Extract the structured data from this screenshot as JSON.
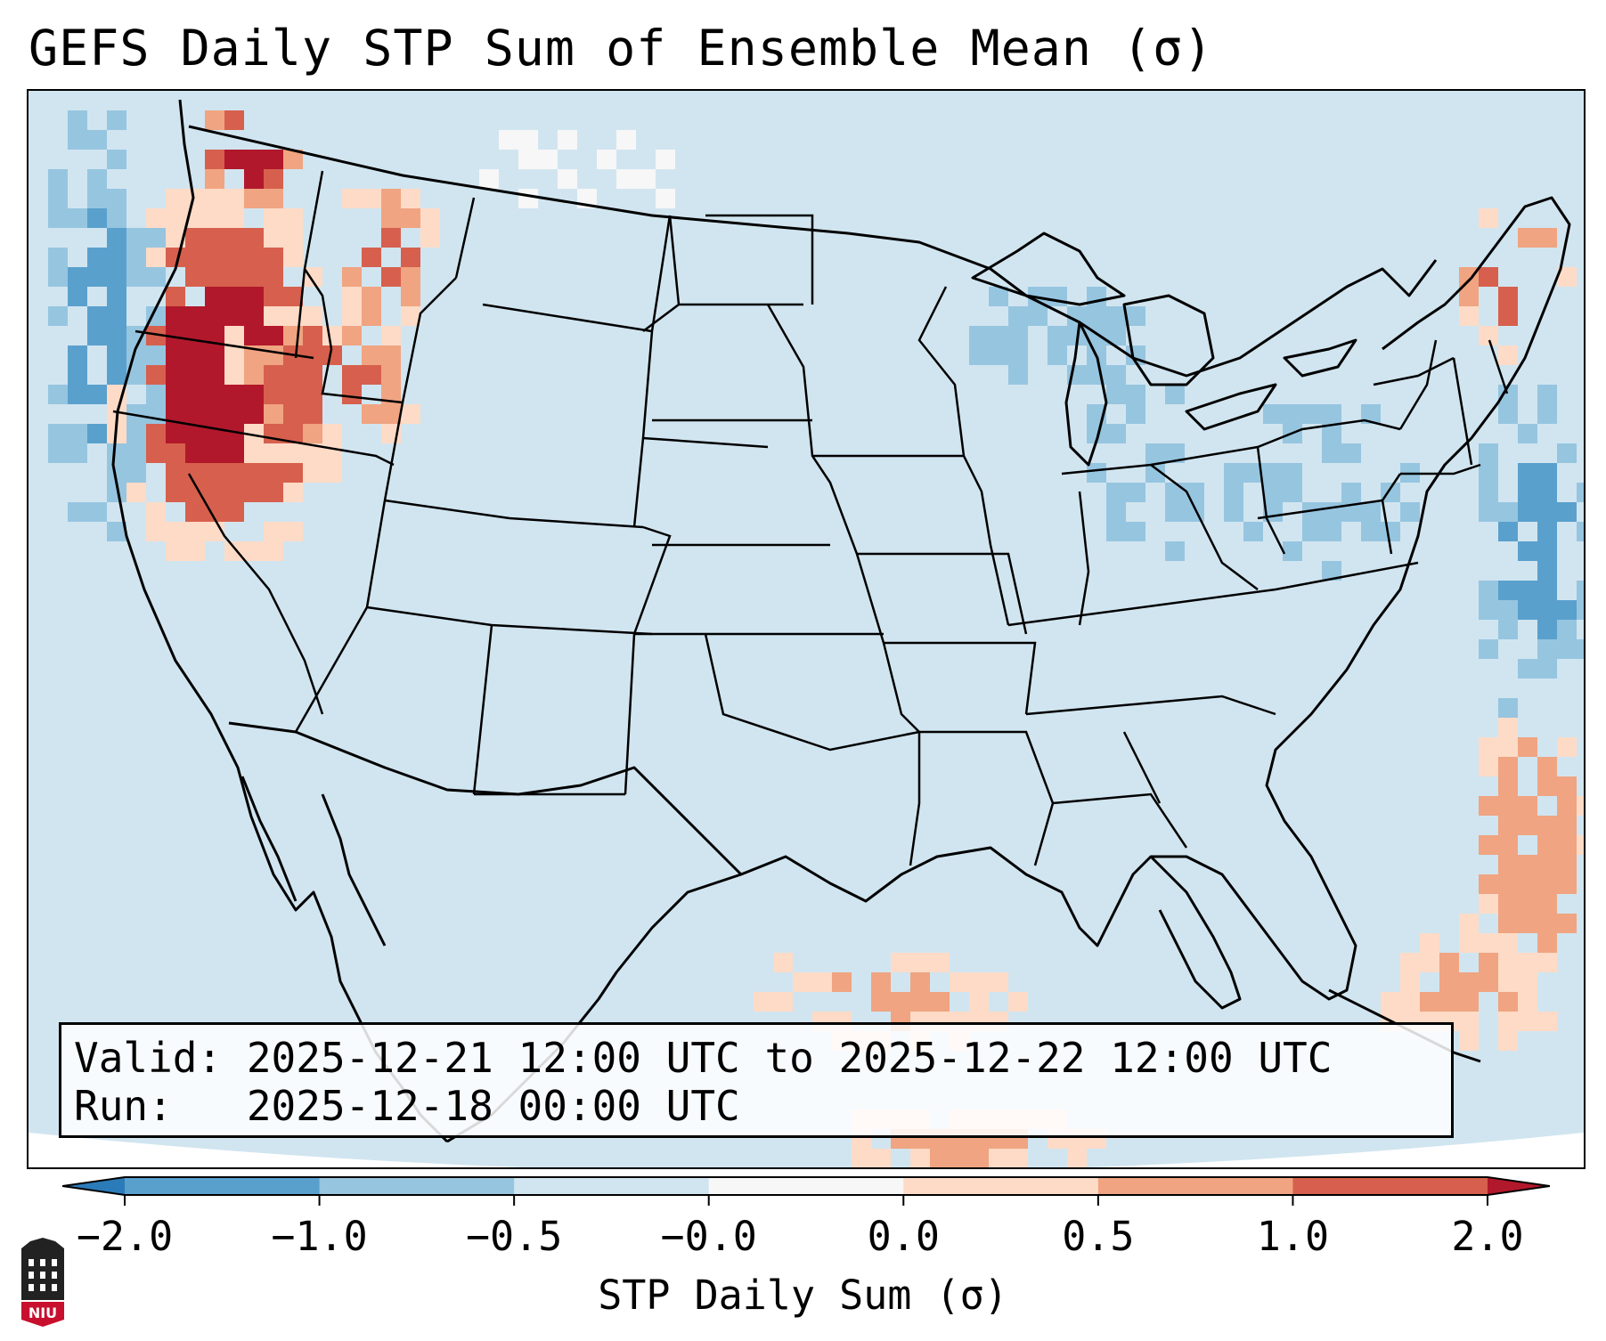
{
  "title": "GEFS Daily STP Sum of Ensemble Mean (σ)",
  "info": {
    "valid_line": "Valid: 2025-12-21 12:00 UTC to 2025-12-22 12:00 UTC",
    "run_line": "Run:   2025-12-18 00:00 UTC"
  },
  "colorbar": {
    "label": "STP Daily Sum (σ)",
    "tick_labels": [
      "−2.0",
      "−1.0",
      "−0.5",
      "−0.0",
      "0.0",
      "0.5",
      "1.0",
      "2.0"
    ],
    "bin_colors": [
      "#2b7bb9",
      "#5aa0cd",
      "#96c5e0",
      "#d1e5f0",
      "#f7f7f7",
      "#fddbc7",
      "#f0a481",
      "#d6604d",
      "#b2182b"
    ]
  },
  "map": {
    "background_value_color": "#d1e5f0",
    "region": "CONUS",
    "anomaly_areas": [
      {
        "region": "Pacific Northwest / Northern California",
        "level": "strong positive"
      },
      {
        "region": "Western Gulf of Mexico coast",
        "level": "weak positive"
      },
      {
        "region": "Western Atlantic east of Florida",
        "level": "moderate positive"
      },
      {
        "region": "Great Lakes and Ohio Valley",
        "level": "weak negative"
      },
      {
        "region": "Western Atlantic off Mid-Atlantic",
        "level": "weak negative"
      }
    ]
  },
  "logo": {
    "text": "NIU"
  }
}
